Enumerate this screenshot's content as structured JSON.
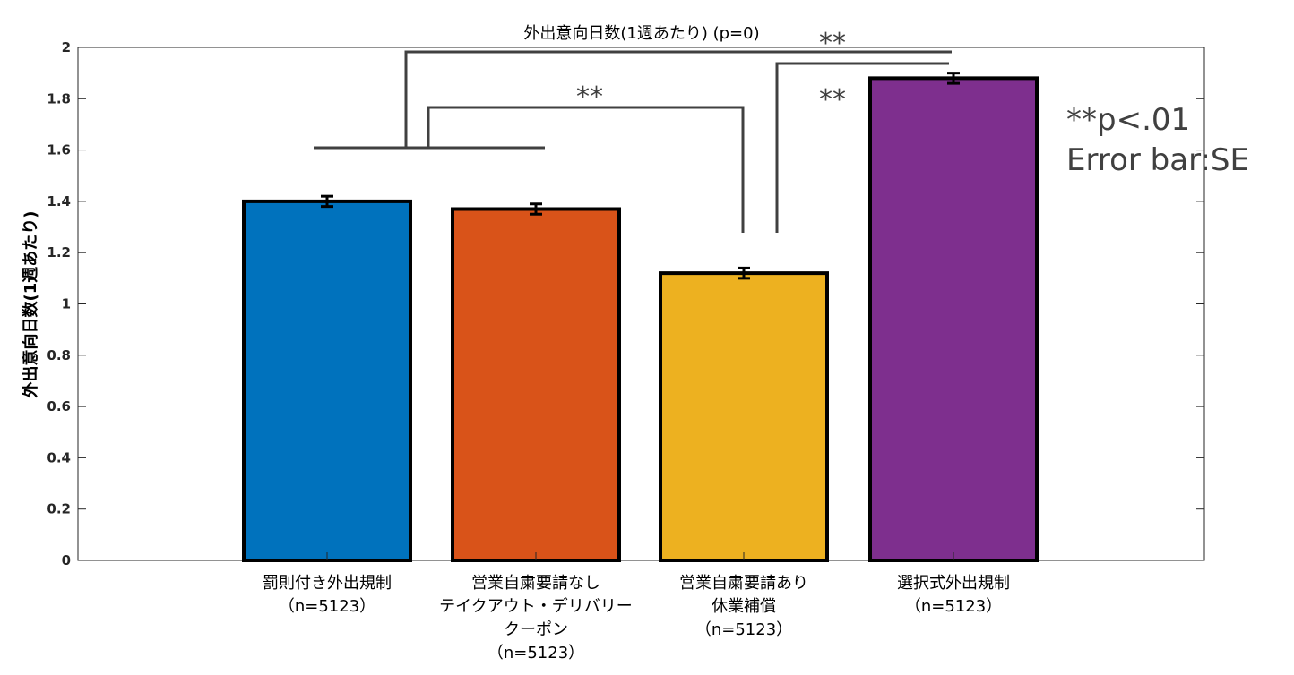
{
  "chart_data": {
    "type": "bar",
    "title": "外出意向日数(1週あたり)  (p=0)",
    "ylabel": "外出意向日数(1週あたり)",
    "xlabel": "",
    "ylim": [
      0,
      2
    ],
    "yticks": [
      "0",
      "0.2",
      "0.4",
      "0.6",
      "0.8",
      "1",
      "1.2",
      "1.4",
      "1.6",
      "1.8",
      "2"
    ],
    "categories": [
      [
        "罰則付き外出規制",
        "（n=5123）"
      ],
      [
        "営業自粛要請なし",
        "テイクアウト・デリバリー",
        "クーポン",
        "（n=5123）"
      ],
      [
        "営業自粛要請あり",
        "休業補償",
        "（n=5123）"
      ],
      [
        "選択式外出規制",
        "（n=5123）"
      ]
    ],
    "values": [
      1.4,
      1.37,
      1.12,
      1.88
    ],
    "errors": [
      0.02,
      0.02,
      0.02,
      0.02
    ],
    "colors": [
      "#0072BD",
      "#D95319",
      "#EDB120",
      "#7E2F8E"
    ],
    "significance": [
      {
        "label": "**"
      },
      {
        "label": "**"
      },
      {
        "label": "**"
      }
    ],
    "notes": [
      "**p<.01",
      "Error bar:SE"
    ],
    "grid": false
  }
}
